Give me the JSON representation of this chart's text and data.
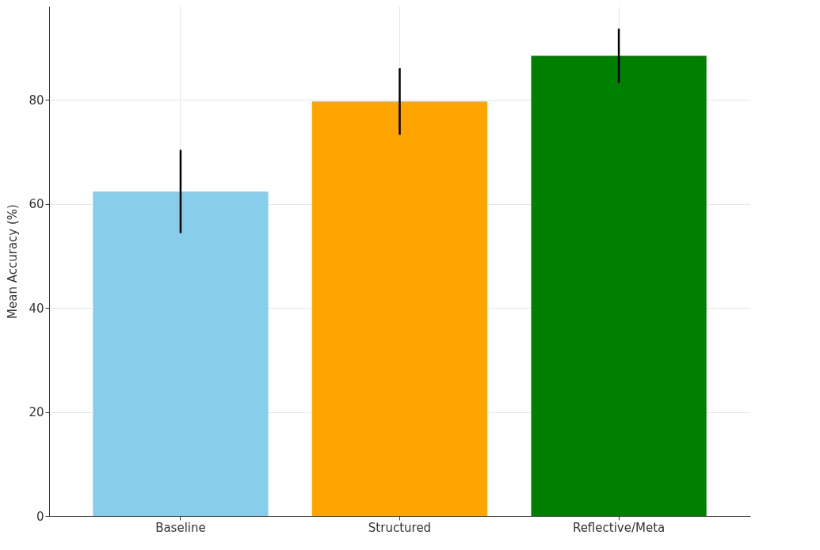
{
  "chart_data": {
    "type": "bar",
    "ylabel": "Mean Accuracy (%)",
    "categories": [
      "Baseline",
      "Structured",
      "Reflective/Meta"
    ],
    "values": [
      62.4,
      79.7,
      88.5
    ],
    "colors": [
      "#87ceeb",
      "#ffa500",
      "#008000"
    ],
    "errors": [
      8,
      6.4,
      5.2
    ],
    "ylim": [
      0,
      98
    ],
    "yticks": [
      0,
      20,
      40,
      60,
      80
    ],
    "grid": true
  }
}
